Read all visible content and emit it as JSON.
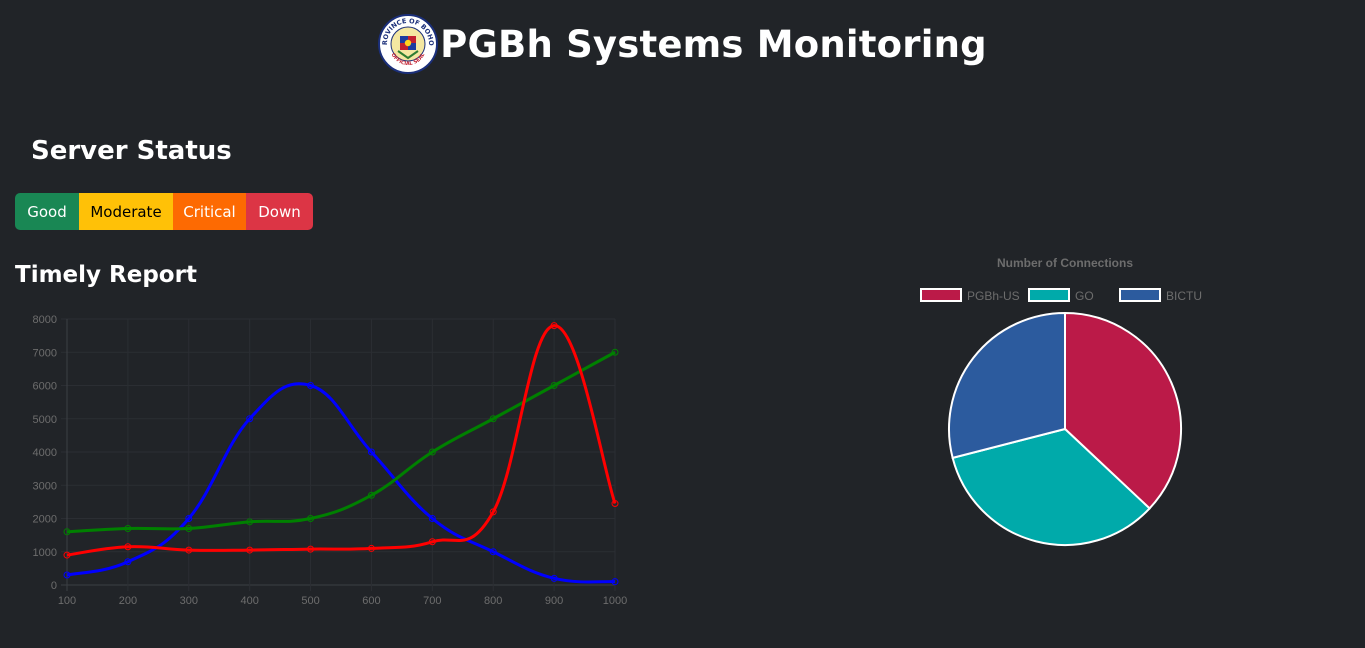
{
  "header": {
    "title": "PGBh Systems Monitoring",
    "logo": {
      "icon": "provincial-seal-icon",
      "ring_text": "PROVINCE OF BOHOL",
      "bottom_text": "OFFICIAL SEAL"
    }
  },
  "server_status": {
    "title": "Server Status",
    "buttons": [
      {
        "label": "Good",
        "color": "#198754",
        "text_color": "#ffffff"
      },
      {
        "label": "Moderate",
        "color": "#ffc107",
        "text_color": "#000000"
      },
      {
        "label": "Critical",
        "color": "#fd6a02",
        "text_color": "#ffffff"
      },
      {
        "label": "Down",
        "color": "#dc3545",
        "text_color": "#ffffff"
      }
    ]
  },
  "timely_report": {
    "title": "Timely Report"
  },
  "chart_data": [
    {
      "type": "line",
      "title": "",
      "x": [
        100,
        200,
        300,
        400,
        500,
        600,
        700,
        800,
        900,
        1000
      ],
      "ylim": [
        0,
        8000
      ],
      "yticks": [
        0,
        1000,
        2000,
        3000,
        4000,
        5000,
        6000,
        7000,
        8000
      ],
      "grid": true,
      "legend": "none",
      "series": [
        {
          "color": "#0000ff",
          "values": [
            300,
            700,
            2000,
            5000,
            6000,
            4000,
            2000,
            1000,
            200,
            100
          ]
        },
        {
          "color": "#008000",
          "values": [
            1600,
            1700,
            1700,
            1900,
            2000,
            2700,
            4000,
            5000,
            6000,
            7000
          ]
        },
        {
          "color": "#ff0000",
          "values": [
            900,
            1150,
            1050,
            1050,
            1080,
            1100,
            1300,
            2200,
            7800,
            2450
          ]
        }
      ]
    },
    {
      "type": "pie",
      "title": "Number of Connections",
      "legend": "top",
      "categories": [
        "PGBh-US",
        "GO",
        "BICTU"
      ],
      "values": [
        37,
        34,
        29
      ],
      "colors": [
        "#bb1a48",
        "#00aaaa",
        "#2c5b9e"
      ]
    }
  ]
}
